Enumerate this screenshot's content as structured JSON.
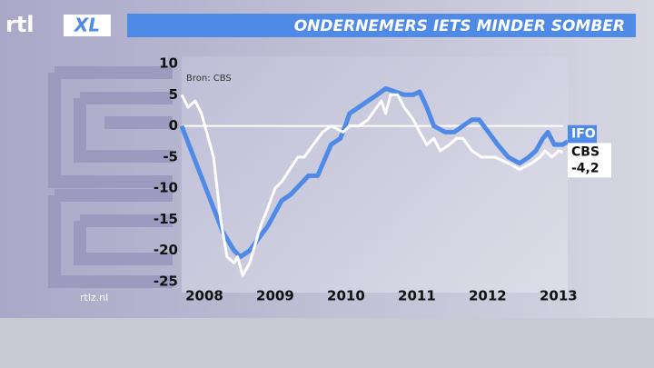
{
  "logo": {
    "left": "rtl",
    "right": "XL"
  },
  "footer": "rtlz.nl",
  "chart_data": {
    "type": "line",
    "title": "ONDERNEMERS IETS MINDER SOMBER",
    "annotation": "Bron: CBS",
    "xlim": [
      2007.68,
      2013.13
    ],
    "xticks": [
      2008,
      2009,
      2010,
      2011,
      2012,
      2013
    ],
    "ylim": [
      -25,
      10
    ],
    "yticks": [
      10,
      5,
      0,
      -5,
      -10,
      -15,
      -20,
      -25
    ],
    "zero_line": true,
    "series": [
      {
        "name": "IFO",
        "color": "#4f8be6",
        "x": [
          2007.68,
          2008.26,
          2008.42,
          2008.51,
          2008.64,
          2008.9,
          2009.09,
          2009.22,
          2009.47,
          2009.6,
          2009.79,
          2009.92,
          2009.99,
          2010.05,
          2010.18,
          2010.31,
          2010.44,
          2010.56,
          2010.69,
          2010.82,
          2010.95,
          2011.04,
          2011.14,
          2011.24,
          2011.4,
          2011.53,
          2011.65,
          2011.78,
          2011.88,
          2012.01,
          2012.14,
          2012.29,
          2012.45,
          2012.58,
          2012.68,
          2012.78,
          2012.85,
          2012.94,
          2013.06,
          2013.13
        ],
        "values": [
          0,
          -17,
          -20,
          -21,
          -20,
          -16,
          -12,
          -11,
          -8,
          -8,
          -3,
          -2,
          0,
          2,
          3,
          4,
          5,
          6,
          5.5,
          5,
          5,
          5.5,
          3,
          0,
          -1,
          -1,
          0,
          1,
          1,
          -1,
          -3,
          -5,
          -6,
          -5,
          -4,
          -2,
          -1,
          -3,
          -3,
          -2.5
        ]
      },
      {
        "name": "CBS",
        "color": "#ffffff",
        "x": [
          2007.68,
          2007.77,
          2007.87,
          2007.96,
          2008.13,
          2008.23,
          2008.32,
          2008.42,
          2008.47,
          2008.54,
          2008.64,
          2008.77,
          2008.83,
          2008.87,
          2009.0,
          2009.09,
          2009.32,
          2009.41,
          2009.54,
          2009.67,
          2009.79,
          2009.96,
          2010.05,
          2010.18,
          2010.31,
          2010.37,
          2010.5,
          2010.56,
          2010.63,
          2010.73,
          2010.82,
          2010.95,
          2011.04,
          2011.14,
          2011.24,
          2011.33,
          2011.46,
          2011.56,
          2011.65,
          2011.78,
          2011.91,
          2012.1,
          2012.29,
          2012.45,
          2012.62,
          2012.74,
          2012.81,
          2012.91,
          2013.0,
          2013.06
        ],
        "values": [
          5,
          3,
          4,
          2,
          -5,
          -15,
          -21,
          -22,
          -21,
          -24,
          -22,
          -17,
          -15,
          -14,
          -10,
          -9,
          -5,
          -5,
          -3,
          -1,
          0,
          -1,
          0,
          0,
          1,
          2,
          4,
          2,
          5,
          5,
          3,
          1,
          -1,
          -3,
          -2,
          -4,
          -3,
          -2,
          -2,
          -4,
          -5,
          -5,
          -6,
          -7,
          -6,
          -5,
          -4,
          -5,
          -4,
          -4.2
        ],
        "value_labels": [
          null,
          null,
          null,
          null,
          null,
          null,
          null,
          null,
          null,
          null,
          null,
          null,
          null,
          null,
          null,
          null,
          null,
          null,
          null,
          null,
          null,
          null,
          null,
          null,
          null,
          null,
          null,
          null,
          null,
          null,
          null,
          null,
          null,
          null,
          null,
          null,
          null,
          null,
          null,
          null,
          null,
          null,
          null,
          null,
          null,
          null,
          null,
          null,
          null,
          "-4,2"
        ]
      }
    ]
  }
}
